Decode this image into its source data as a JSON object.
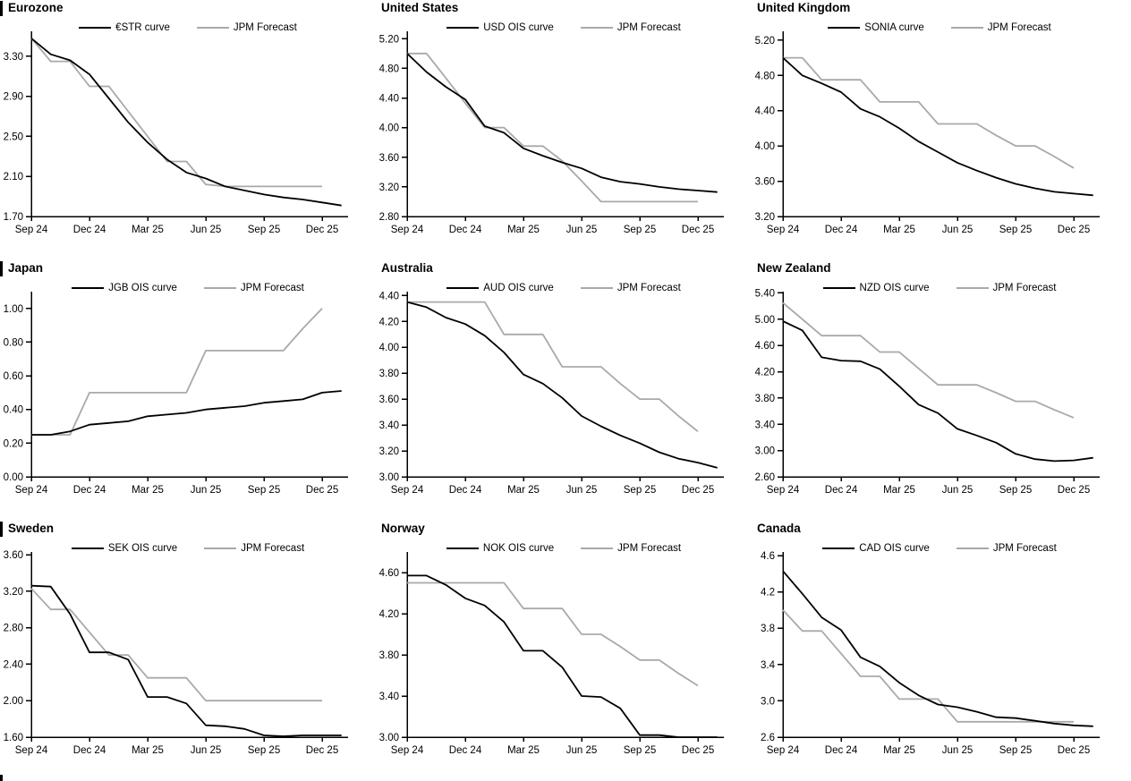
{
  "meta": {
    "background": "#ffffff",
    "curve_color": "#000000",
    "forecast_color": "#a9a9a9",
    "axis_color": "#000000"
  },
  "x_axis": {
    "labels": [
      "Sep 24",
      "Dec 24",
      "Mar 25",
      "Jun 25",
      "Sep 25",
      "Dec 25"
    ],
    "tick_month_indices": [
      0,
      3,
      6,
      9,
      12,
      15
    ],
    "x_unit": "monthly points from Sep 2024 to Dec 2025 (curve series extends one extra point)"
  },
  "chart_data": [
    {
      "type": "line",
      "title": "Eurozone",
      "section_bar": true,
      "ylim": [
        1.7,
        3.55
      ],
      "yticks": [
        "1.70",
        "2.10",
        "2.50",
        "2.90",
        "3.30"
      ],
      "legend_position": "top-center",
      "grid": false,
      "series": [
        {
          "name": "€STR curve",
          "role": "curve",
          "values": [
            3.48,
            3.32,
            3.26,
            3.12,
            2.88,
            2.64,
            2.44,
            2.27,
            2.14,
            2.08,
            2.0,
            1.96,
            1.92,
            1.89,
            1.87,
            1.84,
            1.81
          ]
        },
        {
          "name": "JPM Forecast",
          "role": "forecast",
          "values": [
            3.48,
            3.25,
            3.25,
            3.0,
            3.0,
            2.75,
            2.5,
            2.25,
            2.25,
            2.02,
            2.0,
            2.0,
            2.0,
            2.0,
            2.0,
            2.0
          ]
        }
      ]
    },
    {
      "type": "line",
      "title": "United States",
      "section_bar": false,
      "ylim": [
        2.8,
        5.3
      ],
      "yticks": [
        "2.80",
        "3.20",
        "3.60",
        "4.00",
        "4.40",
        "4.80",
        "5.20"
      ],
      "legend_position": "top-center",
      "grid": false,
      "series": [
        {
          "name": "USD OIS curve",
          "role": "curve",
          "values": [
            5.0,
            4.75,
            4.55,
            4.38,
            4.02,
            3.93,
            3.72,
            3.62,
            3.53,
            3.45,
            3.33,
            3.27,
            3.24,
            3.2,
            3.17,
            3.15,
            3.13
          ]
        },
        {
          "name": "JPM Forecast",
          "role": "forecast",
          "values": [
            5.0,
            5.0,
            4.67,
            4.33,
            4.0,
            4.0,
            3.75,
            3.75,
            3.55,
            3.28,
            3.0,
            3.0,
            3.0,
            3.0,
            3.0,
            3.0
          ]
        }
      ]
    },
    {
      "type": "line",
      "title": "United Kingdom",
      "section_bar": false,
      "ylim": [
        3.2,
        5.3
      ],
      "yticks": [
        "3.20",
        "3.60",
        "4.00",
        "4.40",
        "4.80",
        "5.20"
      ],
      "legend_position": "top-center",
      "grid": false,
      "series": [
        {
          "name": "SONIA curve",
          "role": "curve",
          "values": [
            5.0,
            4.8,
            4.71,
            4.61,
            4.42,
            4.33,
            4.2,
            4.05,
            3.93,
            3.81,
            3.72,
            3.64,
            3.57,
            3.52,
            3.48,
            3.46,
            3.44
          ]
        },
        {
          "name": "JPM Forecast",
          "role": "forecast",
          "values": [
            5.0,
            5.0,
            4.75,
            4.75,
            4.75,
            4.5,
            4.5,
            4.5,
            4.25,
            4.25,
            4.25,
            4.12,
            4.0,
            4.0,
            3.88,
            3.75
          ]
        }
      ]
    },
    {
      "type": "line",
      "title": "Japan",
      "section_bar": true,
      "ylim": [
        0.0,
        1.1
      ],
      "yticks": [
        "0.00",
        "0.20",
        "0.40",
        "0.60",
        "0.80",
        "1.00"
      ],
      "legend_position": "top-center",
      "grid": false,
      "series": [
        {
          "name": "JGB OIS curve",
          "role": "curve",
          "values": [
            0.25,
            0.25,
            0.27,
            0.31,
            0.32,
            0.33,
            0.36,
            0.37,
            0.38,
            0.4,
            0.41,
            0.42,
            0.44,
            0.45,
            0.46,
            0.5,
            0.51
          ]
        },
        {
          "name": "JPM Forecast",
          "role": "forecast",
          "values": [
            0.25,
            0.25,
            0.25,
            0.5,
            0.5,
            0.5,
            0.5,
            0.5,
            0.5,
            0.75,
            0.75,
            0.75,
            0.75,
            0.75,
            0.88,
            1.0
          ]
        }
      ]
    },
    {
      "type": "line",
      "title": "Australia",
      "section_bar": false,
      "ylim": [
        3.0,
        4.43
      ],
      "yticks": [
        "3.00",
        "3.20",
        "3.40",
        "3.60",
        "3.80",
        "4.00",
        "4.20",
        "4.40"
      ],
      "legend_position": "top-center",
      "grid": false,
      "series": [
        {
          "name": "AUD OIS curve",
          "role": "curve",
          "values": [
            4.35,
            4.31,
            4.23,
            4.18,
            4.09,
            3.96,
            3.79,
            3.72,
            3.61,
            3.47,
            3.39,
            3.32,
            3.26,
            3.19,
            3.14,
            3.11,
            3.07
          ]
        },
        {
          "name": "JPM Forecast",
          "role": "forecast",
          "values": [
            4.35,
            4.35,
            4.35,
            4.35,
            4.35,
            4.1,
            4.1,
            4.1,
            3.85,
            3.85,
            3.85,
            3.72,
            3.6,
            3.6,
            3.47,
            3.35
          ]
        }
      ]
    },
    {
      "type": "line",
      "title": "New Zealand",
      "section_bar": false,
      "ylim": [
        2.6,
        5.42
      ],
      "yticks": [
        "2.60",
        "3.00",
        "3.40",
        "3.80",
        "4.20",
        "4.60",
        "5.00",
        "5.40"
      ],
      "legend_position": "top-center",
      "grid": false,
      "series": [
        {
          "name": "NZD OIS curve",
          "role": "curve",
          "values": [
            4.97,
            4.83,
            4.42,
            4.37,
            4.36,
            4.24,
            3.98,
            3.7,
            3.57,
            3.33,
            3.23,
            3.12,
            2.95,
            2.87,
            2.84,
            2.85,
            2.89
          ]
        },
        {
          "name": "JPM Forecast",
          "role": "forecast",
          "values": [
            5.25,
            5.0,
            4.75,
            4.75,
            4.75,
            4.5,
            4.5,
            4.25,
            4.0,
            4.0,
            4.0,
            3.88,
            3.75,
            3.75,
            3.62,
            3.5
          ]
        }
      ]
    },
    {
      "type": "line",
      "title": "Sweden",
      "section_bar": true,
      "ylim": [
        1.6,
        3.63
      ],
      "yticks": [
        "1.60",
        "2.00",
        "2.40",
        "2.80",
        "3.20",
        "3.60"
      ],
      "legend_position": "top-center",
      "grid": false,
      "series": [
        {
          "name": "SEK OIS curve",
          "role": "curve",
          "values": [
            3.26,
            3.25,
            2.95,
            2.53,
            2.53,
            2.45,
            2.04,
            2.04,
            1.97,
            1.73,
            1.72,
            1.69,
            1.62,
            1.61,
            1.62,
            1.62,
            1.62
          ]
        },
        {
          "name": "JPM Forecast",
          "role": "forecast",
          "values": [
            3.23,
            3.0,
            3.0,
            2.75,
            2.5,
            2.5,
            2.25,
            2.25,
            2.25,
            2.0,
            2.0,
            2.0,
            2.0,
            2.0,
            2.0,
            2.0
          ]
        }
      ]
    },
    {
      "type": "line",
      "title": "Norway",
      "section_bar": false,
      "ylim": [
        3.0,
        4.8
      ],
      "yticks": [
        "3.00",
        "3.40",
        "3.80",
        "4.20",
        "4.60"
      ],
      "legend_position": "top-center",
      "grid": false,
      "series": [
        {
          "name": "NOK OIS curve",
          "role": "curve",
          "values": [
            4.57,
            4.57,
            4.48,
            4.35,
            4.28,
            4.12,
            3.84,
            3.84,
            3.68,
            3.4,
            3.39,
            3.28,
            3.02,
            3.02,
            3.0,
            2.99,
            2.99
          ]
        },
        {
          "name": "JPM Forecast",
          "role": "forecast",
          "values": [
            4.5,
            4.5,
            4.5,
            4.5,
            4.5,
            4.5,
            4.25,
            4.25,
            4.25,
            4.0,
            4.0,
            3.88,
            3.75,
            3.75,
            3.62,
            3.5
          ]
        }
      ]
    },
    {
      "type": "line",
      "title": "Canada",
      "section_bar": false,
      "ylim": [
        2.6,
        4.64
      ],
      "yticks": [
        "2.6",
        "3.0",
        "3.4",
        "3.8",
        "4.2",
        "4.6"
      ],
      "legend_position": "top-center",
      "grid": false,
      "series": [
        {
          "name": "CAD OIS curve",
          "role": "curve",
          "values": [
            4.43,
            4.18,
            3.92,
            3.78,
            3.48,
            3.38,
            3.2,
            3.06,
            2.96,
            2.93,
            2.88,
            2.82,
            2.81,
            2.78,
            2.75,
            2.73,
            2.72
          ]
        },
        {
          "name": "JPM Forecast",
          "role": "forecast",
          "values": [
            4.0,
            3.77,
            3.77,
            3.52,
            3.27,
            3.27,
            3.02,
            3.02,
            3.02,
            2.77,
            2.77,
            2.77,
            2.77,
            2.77,
            2.77,
            2.77
          ]
        }
      ]
    }
  ]
}
